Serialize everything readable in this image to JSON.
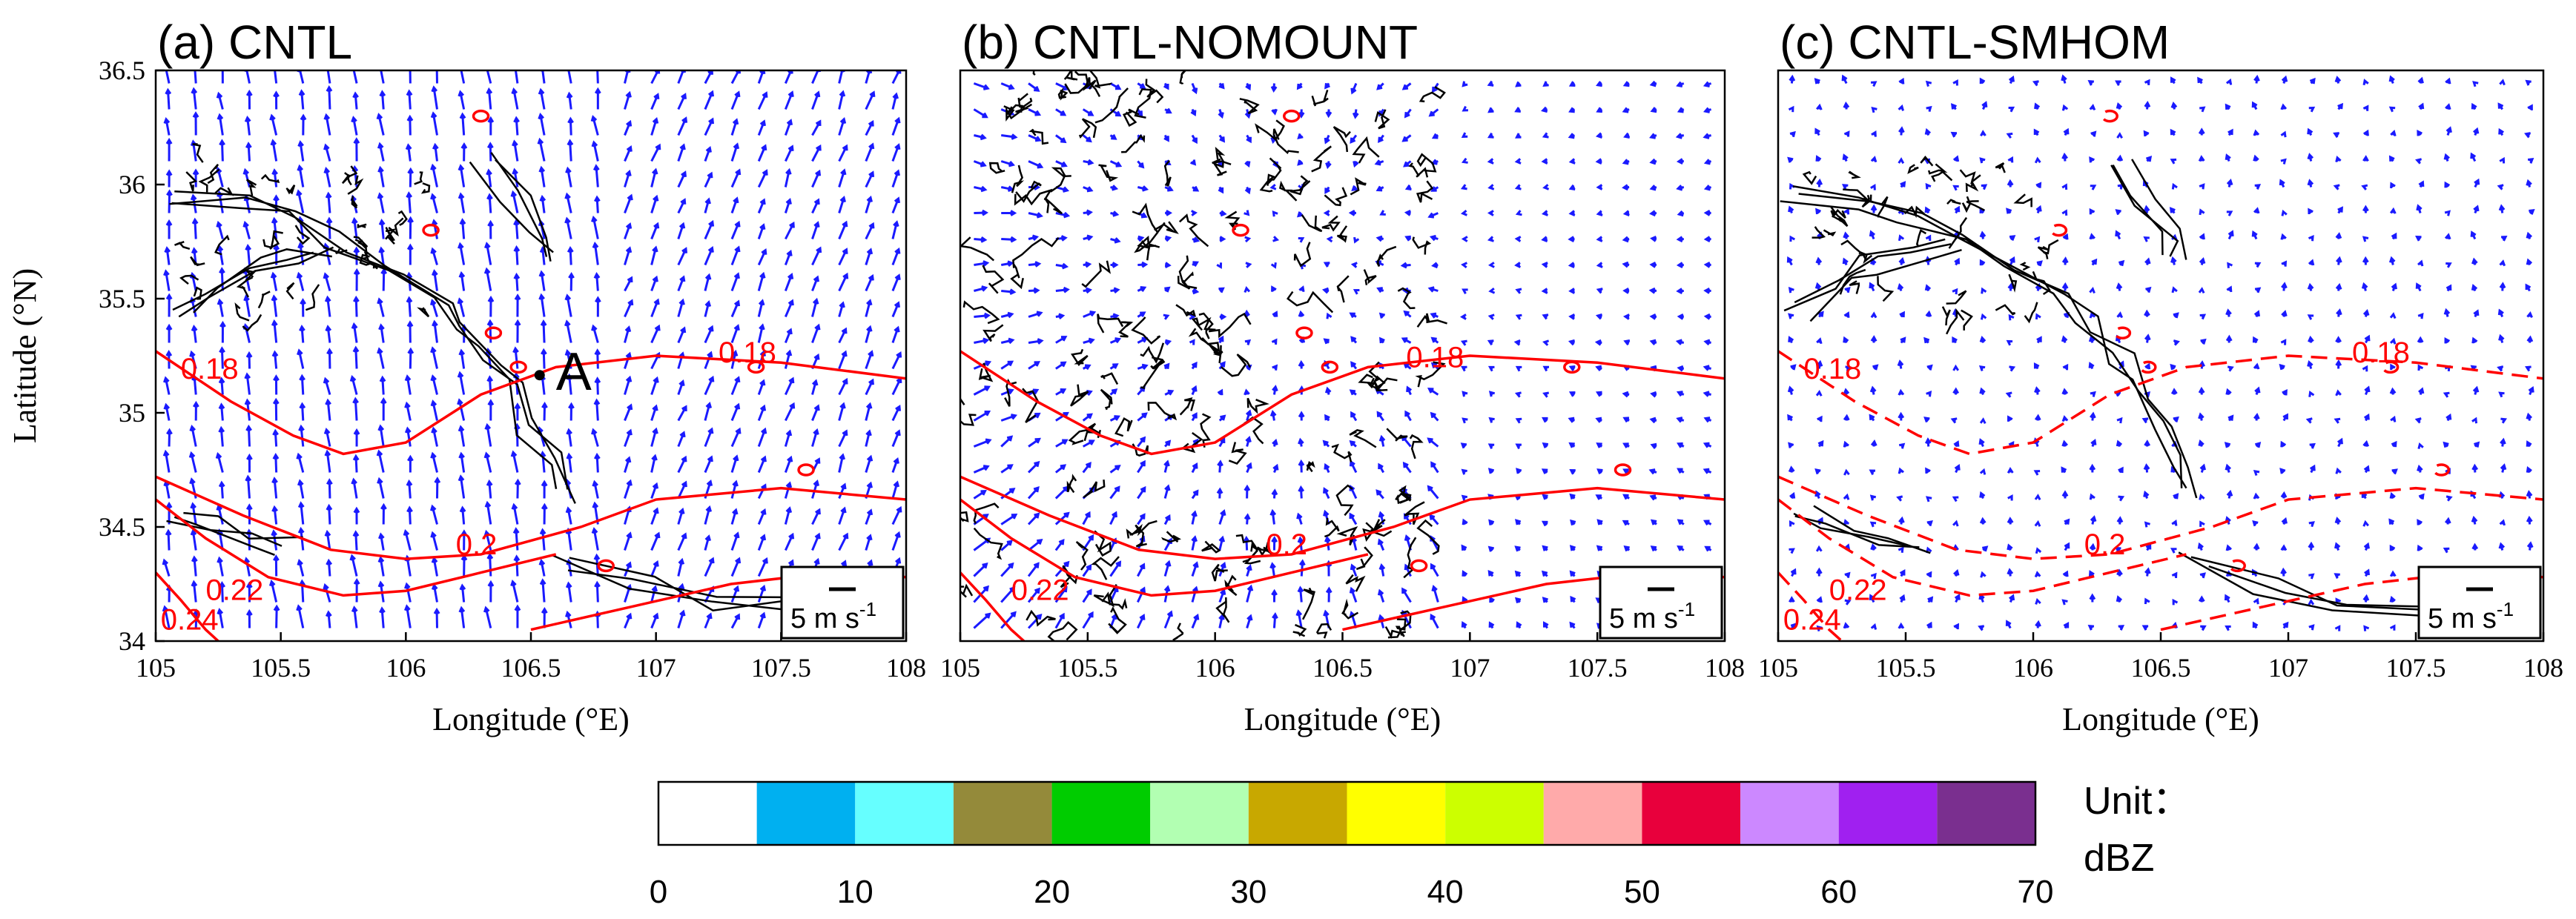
{
  "chart_data": [
    {
      "type": "contour-vector-map",
      "title": "(a) CNTL",
      "xlabel": "Longitude (°E)",
      "ylabel": "Latitude (°N)",
      "xlim": [
        105,
        108
      ],
      "ylim": [
        34,
        36.5
      ],
      "x_ticks": [
        "105",
        "105.5",
        "106",
        "106.5",
        "107",
        "107.5",
        "108"
      ],
      "y_ticks": [
        "34",
        "34.5",
        "35",
        "35.5",
        "36",
        "36.5"
      ],
      "contour_style": "solid",
      "contour_labels": [
        {
          "text": "0.18",
          "lon": 105.1,
          "lat": 35.15
        },
        {
          "text": "0.18",
          "lon": 107.25,
          "lat": 35.22
        },
        {
          "text": "0.2",
          "lon": 106.2,
          "lat": 34.38
        },
        {
          "text": "0.22",
          "lon": 105.2,
          "lat": 34.18
        },
        {
          "text": "0.24",
          "lon": 105.02,
          "lat": 34.05
        }
      ],
      "annotation": {
        "text": "A",
        "lon": 106.6,
        "lat": 35.1
      },
      "scale_label": "5 m s",
      "scale_exp": "-1",
      "wind_pattern": "southerly"
    },
    {
      "type": "contour-vector-map",
      "title": "(b) CNTL-NOMOUNT",
      "xlabel": "Longitude (°E)",
      "ylabel": "",
      "xlim": [
        105,
        108
      ],
      "ylim": [
        34,
        36.5
      ],
      "x_ticks": [
        "105",
        "105.5",
        "106",
        "106.5",
        "107",
        "107.5",
        "108"
      ],
      "y_ticks": [],
      "contour_style": "solid",
      "contour_labels": [
        {
          "text": "0.18",
          "lon": 106.75,
          "lat": 35.2
        },
        {
          "text": "0.2",
          "lon": 106.2,
          "lat": 34.38
        },
        {
          "text": "0.22",
          "lon": 105.2,
          "lat": 34.18
        }
      ],
      "scale_label": "5 m s",
      "scale_exp": "-1",
      "wind_pattern": "convergent"
    },
    {
      "type": "contour-vector-map",
      "title": "(c) CNTL-SMHOM",
      "xlabel": "Longitude (°E)",
      "ylabel": "",
      "xlim": [
        105,
        108
      ],
      "ylim": [
        34,
        36.5
      ],
      "x_ticks": [
        "105",
        "105.5",
        "106",
        "106.5",
        "107",
        "107.5",
        "108"
      ],
      "y_ticks": [],
      "contour_style": "dashed",
      "contour_labels": [
        {
          "text": "0.18",
          "lon": 105.1,
          "lat": 35.15
        },
        {
          "text": "0.18",
          "lon": 107.25,
          "lat": 35.22
        },
        {
          "text": "0.2",
          "lon": 106.2,
          "lat": 34.38
        },
        {
          "text": "0.22",
          "lon": 105.2,
          "lat": 34.18
        },
        {
          "text": "0.24",
          "lon": 105.02,
          "lat": 34.05
        }
      ],
      "scale_label": "5 m s",
      "scale_exp": "-1",
      "wind_pattern": "weak"
    }
  ],
  "colorbar": {
    "ticks": [
      "0",
      "10",
      "20",
      "30",
      "40",
      "50",
      "60",
      "70"
    ],
    "boundaries": [
      0,
      5,
      10,
      15,
      20,
      25,
      30,
      35,
      40,
      45,
      50,
      55,
      60,
      65,
      70
    ],
    "colors": [
      "#ffffff",
      "#00b0f0",
      "#66ffff",
      "#948a3a",
      "#00cc00",
      "#b2ffb2",
      "#c8a800",
      "#ffff00",
      "#ccff00",
      "#ffaaaa",
      "#e8003c",
      "#cc88ff",
      "#a020f0",
      "#7a2f8f"
    ],
    "unit_label": "Unit：",
    "unit": "dBZ"
  },
  "colors": {
    "vector": "#1a1aff",
    "contour": "#ff0000",
    "terrain": "#000000"
  }
}
